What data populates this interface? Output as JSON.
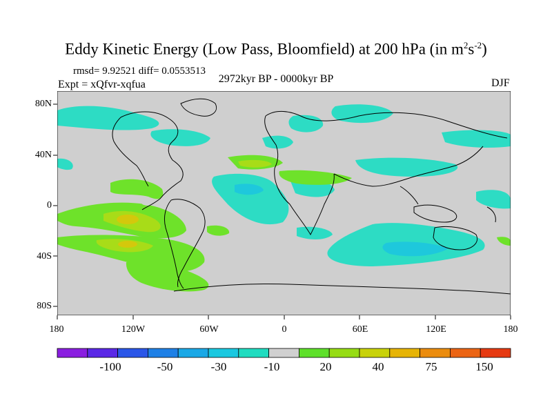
{
  "title": "Eddy Kinetic Energy (Low Pass, Bloomfield) at 200 hPa (in m",
  "title_units": {
    "sup1": "2",
    "mid": "s",
    "sup2": "-2",
    "close": ")"
  },
  "stats": "rmsd= 9.92521  diff= 0.0553513",
  "experiment": "Expt = xQfvr-xqfua",
  "period": "2972kyr BP - 0000kyr BP",
  "season": "DJF",
  "lat_labels": [
    "80N",
    "40N",
    "0",
    "40S",
    "80S"
  ],
  "lon_labels": [
    "180",
    "120W",
    "60W",
    "0",
    "60E",
    "120E",
    "180"
  ],
  "colorbar": {
    "colors": [
      "#8a1ee0",
      "#5a28e6",
      "#2a56e8",
      "#1e80e6",
      "#1aa8e6",
      "#1ac8e0",
      "#20dcc0",
      "#d0d0d0",
      "#5ee02a",
      "#96dc14",
      "#c8d20a",
      "#e6b406",
      "#eb8c0e",
      "#eb6414",
      "#e63a12"
    ],
    "labels": [
      "-100",
      "-50",
      "-30",
      "-10",
      "20",
      "40",
      "75",
      "150"
    ]
  },
  "field_colors": {
    "land_bg": "#cfcfcf",
    "neg_light": "#2ddcc4",
    "neg_mid": "#1ec8dc",
    "pos_light": "#6ee22a",
    "pos_mid": "#a8dc18",
    "pos_high": "#d4c80c"
  }
}
